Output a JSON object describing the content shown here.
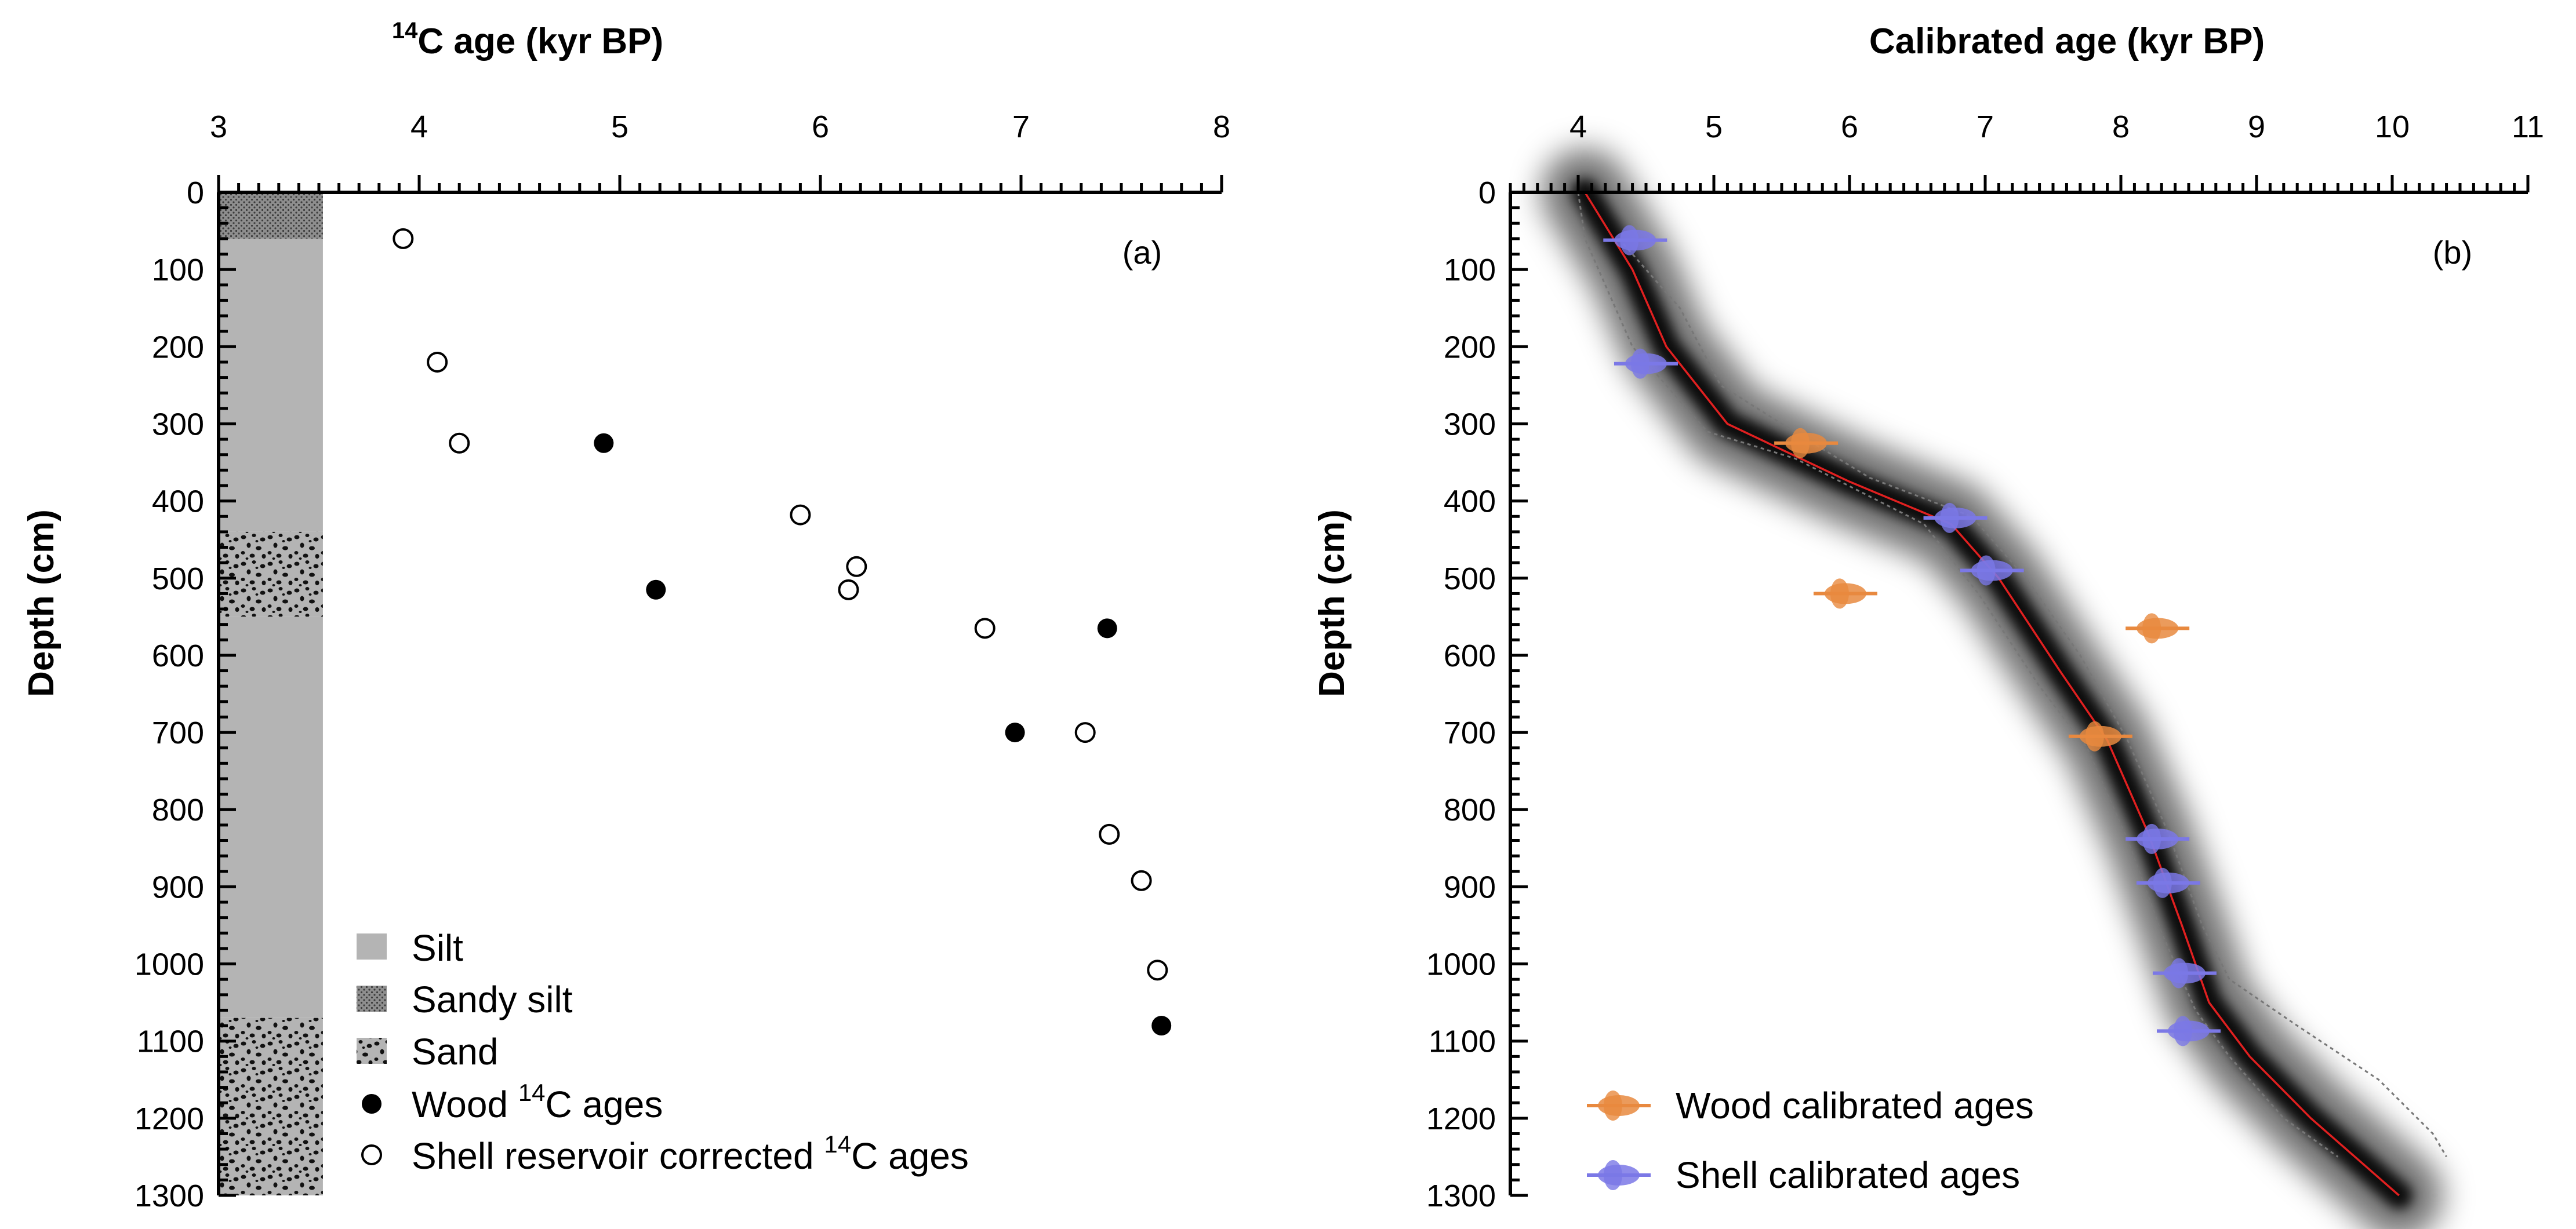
{
  "chart_data": [
    {
      "type": "scatter",
      "panel_label": "(a)",
      "title_parts": {
        "sup": "14",
        "main": "C age (kyr BP)"
      },
      "ylabel": "Depth (cm)",
      "xlim": [
        3,
        8
      ],
      "ylim": [
        0,
        1300
      ],
      "x_ticks": [
        "3",
        "4",
        "5",
        "6",
        "7",
        "8"
      ],
      "y_ticks": [
        "0",
        "100",
        "200",
        "300",
        "400",
        "500",
        "600",
        "700",
        "800",
        "900",
        "1000",
        "1100",
        "1200",
        "1300"
      ],
      "lithology": [
        {
          "type": "sandy-silt",
          "top": 0,
          "bottom": 60
        },
        {
          "type": "silt",
          "top": 60,
          "bottom": 440
        },
        {
          "type": "sand",
          "top": 440,
          "bottom": 550
        },
        {
          "type": "silt",
          "top": 550,
          "bottom": 1070
        },
        {
          "type": "sand",
          "top": 1070,
          "bottom": 1300
        }
      ],
      "lithology_column_xrange": [
        3.0,
        3.52
      ],
      "series": [
        {
          "name": "Wood 14C ages",
          "marker": "filled-circle",
          "points": [
            [
              4.92,
              325
            ],
            [
              5.18,
              515
            ],
            [
              7.43,
              565
            ],
            [
              6.97,
              700
            ],
            [
              7.7,
              1080
            ]
          ]
        },
        {
          "name": "Shell reservoir corrected 14C ages",
          "marker": "open-circle",
          "points": [
            [
              3.92,
              60
            ],
            [
              4.09,
              220
            ],
            [
              4.2,
              325
            ],
            [
              5.9,
              418
            ],
            [
              6.18,
              485
            ],
            [
              6.14,
              515
            ],
            [
              6.82,
              565
            ],
            [
              7.32,
              700
            ],
            [
              7.44,
              832
            ],
            [
              7.6,
              892
            ],
            [
              7.68,
              1008
            ]
          ]
        }
      ],
      "legend": [
        {
          "kind": "silt",
          "label": "Silt"
        },
        {
          "kind": "sandy-silt",
          "label": "Sandy silt"
        },
        {
          "kind": "sand",
          "label": "Sand"
        },
        {
          "kind": "wood",
          "label": "Wood ",
          "sup": "14",
          "after": "C ages"
        },
        {
          "kind": "shell",
          "label": "Shell reservoir corrected ",
          "sup": "14",
          "after": "C ages"
        }
      ]
    },
    {
      "type": "age-depth-model",
      "panel_label": "(b)",
      "title": "Calibrated age (kyr BP)",
      "ylabel": "Depth (cm)",
      "xlim": [
        3.5,
        11
      ],
      "ylim": [
        0,
        1300
      ],
      "x_ticks": [
        "4",
        "5",
        "6",
        "7",
        "8",
        "9",
        "10",
        "11"
      ],
      "y_ticks": [
        "0",
        "100",
        "200",
        "300",
        "400",
        "500",
        "600",
        "700",
        "800",
        "900",
        "1000",
        "1100",
        "1200",
        "1300"
      ],
      "model_median": [
        [
          4.05,
          0
        ],
        [
          4.4,
          100
        ],
        [
          4.65,
          200
        ],
        [
          5.1,
          300
        ],
        [
          6.0,
          375
        ],
        [
          6.75,
          430
        ],
        [
          7.1,
          500
        ],
        [
          7.55,
          620
        ],
        [
          7.9,
          710
        ],
        [
          8.2,
          830
        ],
        [
          8.45,
          950
        ],
        [
          8.65,
          1050
        ],
        [
          8.95,
          1120
        ],
        [
          9.4,
          1200
        ],
        [
          10.05,
          1300
        ]
      ],
      "confidence_lower": [
        [
          4.0,
          0
        ],
        [
          4.05,
          60
        ],
        [
          4.4,
          200
        ],
        [
          4.95,
          310
        ],
        [
          5.6,
          345
        ],
        [
          6.55,
          430
        ],
        [
          6.95,
          520
        ],
        [
          7.4,
          640
        ],
        [
          7.75,
          720
        ],
        [
          8.05,
          840
        ],
        [
          8.3,
          960
        ],
        [
          8.55,
          1060
        ],
        [
          8.8,
          1120
        ],
        [
          9.2,
          1200
        ],
        [
          9.6,
          1250
        ]
      ],
      "confidence_upper": [
        [
          4.3,
          60
        ],
        [
          4.75,
          150
        ],
        [
          5.05,
          250
        ],
        [
          5.5,
          300
        ],
        [
          6.15,
          370
        ],
        [
          6.9,
          420
        ],
        [
          7.3,
          500
        ],
        [
          7.7,
          600
        ],
        [
          8.05,
          710
        ],
        [
          8.35,
          830
        ],
        [
          8.6,
          950
        ],
        [
          8.8,
          1020
        ],
        [
          9.3,
          1080
        ],
        [
          9.9,
          1150
        ],
        [
          10.3,
          1220
        ],
        [
          10.4,
          1250
        ]
      ],
      "series": [
        {
          "name": "Wood calibrated ages",
          "color": "#e8893f",
          "points": [
            [
              5.68,
              325
            ],
            [
              5.97,
              520
            ],
            [
              8.27,
              565
            ],
            [
              7.85,
              705
            ]
          ]
        },
        {
          "name": "Shell calibrated ages",
          "color": "#7b78e6",
          "points": [
            [
              4.42,
              62
            ],
            [
              4.5,
              222
            ],
            [
              6.78,
              422
            ],
            [
              7.05,
              490
            ],
            [
              8.27,
              838
            ],
            [
              8.35,
              895
            ],
            [
              8.47,
              1012
            ],
            [
              8.5,
              1087
            ]
          ]
        }
      ],
      "legend": [
        {
          "kind": "wood-cal",
          "label": "Wood calibrated ages"
        },
        {
          "kind": "shell-cal",
          "label": "Shell calibrated ages"
        }
      ]
    }
  ]
}
